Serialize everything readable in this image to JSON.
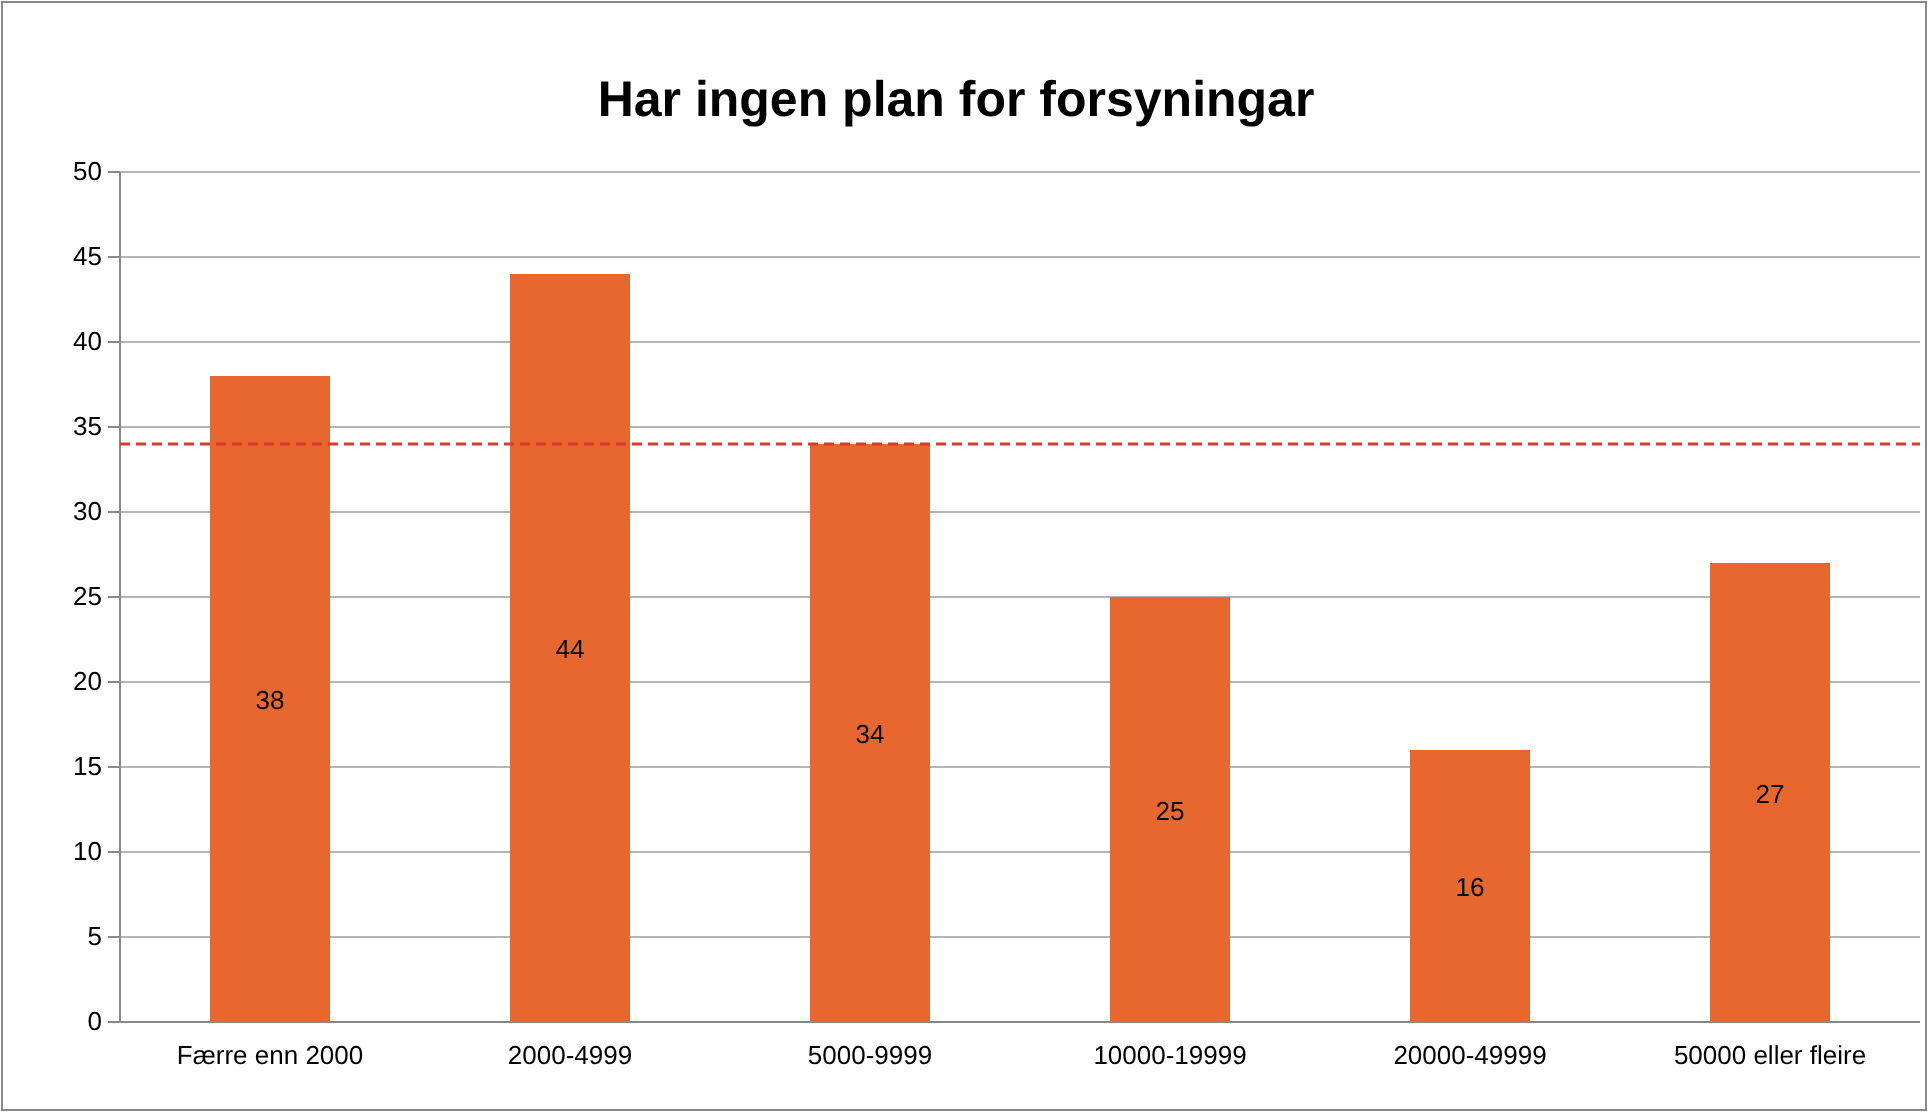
{
  "chart_data": {
    "type": "bar",
    "title": "Har ingen plan for forsyningar",
    "categories": [
      "Færre enn 2000",
      "2000-4999",
      "5000-9999",
      "10000-19999",
      "20000-49999",
      "50000 eller fleire"
    ],
    "values": [
      38,
      44,
      34,
      25,
      16,
      27
    ],
    "color": "#e8672e",
    "ylim": [
      0,
      50
    ],
    "yticks": [
      0,
      5,
      10,
      15,
      20,
      25,
      30,
      35,
      40,
      45,
      50
    ],
    "grid": "y",
    "data_labels": true,
    "ref_lines": [
      {
        "axis": "y",
        "value": 34,
        "color": "#d93a2b",
        "line_style": "dashed"
      }
    ]
  }
}
